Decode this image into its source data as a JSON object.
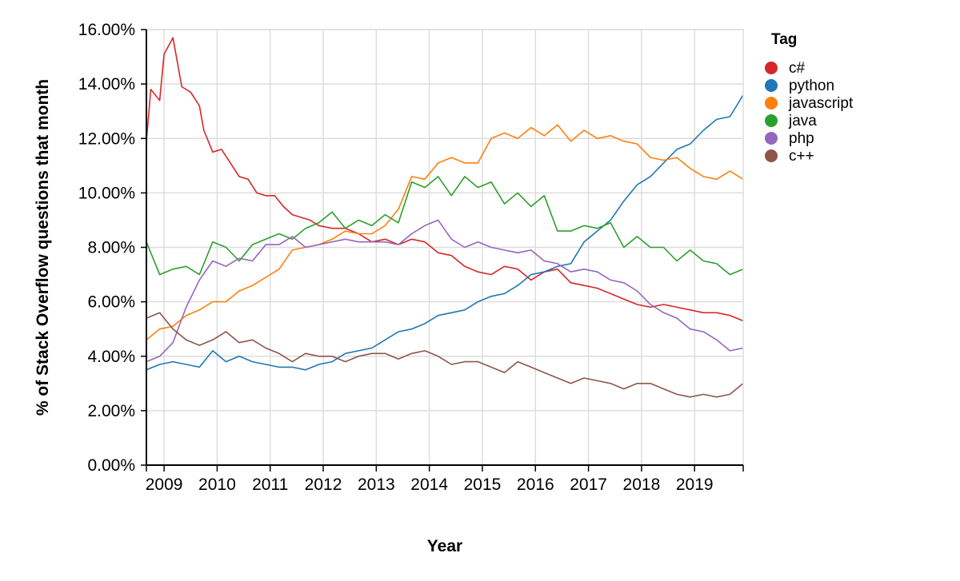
{
  "chart_data": {
    "type": "line",
    "xlabel": "Year",
    "ylabel": "% of Stack Overflow questions that month",
    "ylim": [
      0,
      16
    ],
    "xlim": [
      "2008-09",
      "2019-12"
    ],
    "x_ticks": [
      "2009",
      "2010",
      "2011",
      "2012",
      "2013",
      "2014",
      "2015",
      "2016",
      "2017",
      "2018",
      "2019"
    ],
    "y_ticks": [
      "0.00%",
      "2.00%",
      "4.00%",
      "6.00%",
      "8.00%",
      "10.00%",
      "12.00%",
      "14.00%",
      "16.00%"
    ],
    "y_tick_values": [
      0,
      2,
      4,
      6,
      8,
      10,
      12,
      14,
      16
    ],
    "grid": true,
    "legend": {
      "title": "Tag",
      "placement": "top-right"
    },
    "series": [
      {
        "name": "c#",
        "color": "#d62728",
        "points": [
          [
            "2008-09",
            11.9
          ],
          [
            "2008-10",
            13.8
          ],
          [
            "2008-12",
            13.4
          ],
          [
            "2009-01",
            15.1
          ],
          [
            "2009-03",
            15.7
          ],
          [
            "2009-05",
            13.9
          ],
          [
            "2009-07",
            13.7
          ],
          [
            "2009-09",
            13.2
          ],
          [
            "2009-10",
            12.3
          ],
          [
            "2009-12",
            11.5
          ],
          [
            "2010-02",
            11.6
          ],
          [
            "2010-04",
            11.1
          ],
          [
            "2010-06",
            10.6
          ],
          [
            "2010-08",
            10.5
          ],
          [
            "2010-10",
            10.0
          ],
          [
            "2010-12",
            9.9
          ],
          [
            "2011-02",
            9.9
          ],
          [
            "2011-04",
            9.5
          ],
          [
            "2011-06",
            9.2
          ],
          [
            "2011-08",
            9.1
          ],
          [
            "2011-10",
            9.0
          ],
          [
            "2011-12",
            8.8
          ],
          [
            "2012-03",
            8.7
          ],
          [
            "2012-06",
            8.7
          ],
          [
            "2012-09",
            8.5
          ],
          [
            "2012-12",
            8.2
          ],
          [
            "2013-03",
            8.3
          ],
          [
            "2013-06",
            8.1
          ],
          [
            "2013-09",
            8.3
          ],
          [
            "2013-12",
            8.2
          ],
          [
            "2014-03",
            7.8
          ],
          [
            "2014-06",
            7.7
          ],
          [
            "2014-09",
            7.3
          ],
          [
            "2014-12",
            7.1
          ],
          [
            "2015-03",
            7.0
          ],
          [
            "2015-06",
            7.3
          ],
          [
            "2015-09",
            7.2
          ],
          [
            "2015-12",
            6.8
          ],
          [
            "2016-03",
            7.1
          ],
          [
            "2016-06",
            7.2
          ],
          [
            "2016-09",
            6.7
          ],
          [
            "2016-12",
            6.6
          ],
          [
            "2017-03",
            6.5
          ],
          [
            "2017-06",
            6.3
          ],
          [
            "2017-09",
            6.1
          ],
          [
            "2017-12",
            5.9
          ],
          [
            "2018-03",
            5.8
          ],
          [
            "2018-06",
            5.9
          ],
          [
            "2018-09",
            5.8
          ],
          [
            "2018-12",
            5.7
          ],
          [
            "2019-03",
            5.6
          ],
          [
            "2019-06",
            5.6
          ],
          [
            "2019-09",
            5.5
          ],
          [
            "2019-12",
            5.3
          ]
        ]
      },
      {
        "name": "python",
        "color": "#1f77b4",
        "points": [
          [
            "2008-09",
            3.5
          ],
          [
            "2008-12",
            3.7
          ],
          [
            "2009-03",
            3.8
          ],
          [
            "2009-06",
            3.7
          ],
          [
            "2009-09",
            3.6
          ],
          [
            "2009-12",
            4.2
          ],
          [
            "2010-03",
            3.8
          ],
          [
            "2010-06",
            4.0
          ],
          [
            "2010-09",
            3.8
          ],
          [
            "2010-12",
            3.7
          ],
          [
            "2011-03",
            3.6
          ],
          [
            "2011-06",
            3.6
          ],
          [
            "2011-09",
            3.5
          ],
          [
            "2011-12",
            3.7
          ],
          [
            "2012-03",
            3.8
          ],
          [
            "2012-06",
            4.1
          ],
          [
            "2012-09",
            4.2
          ],
          [
            "2012-12",
            4.3
          ],
          [
            "2013-03",
            4.6
          ],
          [
            "2013-06",
            4.9
          ],
          [
            "2013-09",
            5.0
          ],
          [
            "2013-12",
            5.2
          ],
          [
            "2014-03",
            5.5
          ],
          [
            "2014-06",
            5.6
          ],
          [
            "2014-09",
            5.7
          ],
          [
            "2014-12",
            6.0
          ],
          [
            "2015-03",
            6.2
          ],
          [
            "2015-06",
            6.3
          ],
          [
            "2015-09",
            6.6
          ],
          [
            "2015-12",
            7.0
          ],
          [
            "2016-03",
            7.1
          ],
          [
            "2016-06",
            7.3
          ],
          [
            "2016-09",
            7.4
          ],
          [
            "2016-12",
            8.2
          ],
          [
            "2017-03",
            8.6
          ],
          [
            "2017-06",
            9.0
          ],
          [
            "2017-09",
            9.7
          ],
          [
            "2017-12",
            10.3
          ],
          [
            "2018-03",
            10.6
          ],
          [
            "2018-06",
            11.1
          ],
          [
            "2018-09",
            11.6
          ],
          [
            "2018-12",
            11.8
          ],
          [
            "2019-03",
            12.3
          ],
          [
            "2019-06",
            12.7
          ],
          [
            "2019-09",
            12.8
          ],
          [
            "2019-12",
            13.6
          ]
        ]
      },
      {
        "name": "javascript",
        "color": "#ff7f0e",
        "points": [
          [
            "2008-09",
            4.6
          ],
          [
            "2008-12",
            5.0
          ],
          [
            "2009-03",
            5.1
          ],
          [
            "2009-06",
            5.5
          ],
          [
            "2009-09",
            5.7
          ],
          [
            "2009-12",
            6.0
          ],
          [
            "2010-03",
            6.0
          ],
          [
            "2010-06",
            6.4
          ],
          [
            "2010-09",
            6.6
          ],
          [
            "2010-12",
            6.9
          ],
          [
            "2011-03",
            7.2
          ],
          [
            "2011-06",
            7.9
          ],
          [
            "2011-09",
            8.0
          ],
          [
            "2011-12",
            8.1
          ],
          [
            "2012-03",
            8.3
          ],
          [
            "2012-06",
            8.6
          ],
          [
            "2012-09",
            8.5
          ],
          [
            "2012-12",
            8.5
          ],
          [
            "2013-03",
            8.8
          ],
          [
            "2013-06",
            9.4
          ],
          [
            "2013-09",
            10.6
          ],
          [
            "2013-12",
            10.5
          ],
          [
            "2014-03",
            11.1
          ],
          [
            "2014-06",
            11.3
          ],
          [
            "2014-09",
            11.1
          ],
          [
            "2014-12",
            11.1
          ],
          [
            "2015-03",
            12.0
          ],
          [
            "2015-06",
            12.2
          ],
          [
            "2015-09",
            12.0
          ],
          [
            "2015-12",
            12.4
          ],
          [
            "2016-03",
            12.1
          ],
          [
            "2016-06",
            12.5
          ],
          [
            "2016-09",
            11.9
          ],
          [
            "2016-12",
            12.3
          ],
          [
            "2017-03",
            12.0
          ],
          [
            "2017-06",
            12.1
          ],
          [
            "2017-09",
            11.9
          ],
          [
            "2017-12",
            11.8
          ],
          [
            "2018-03",
            11.3
          ],
          [
            "2018-06",
            11.2
          ],
          [
            "2018-09",
            11.3
          ],
          [
            "2018-12",
            10.9
          ],
          [
            "2019-03",
            10.6
          ],
          [
            "2019-06",
            10.5
          ],
          [
            "2019-09",
            10.8
          ],
          [
            "2019-12",
            10.5
          ]
        ]
      },
      {
        "name": "java",
        "color": "#2ca02c",
        "points": [
          [
            "2008-09",
            8.2
          ],
          [
            "2008-12",
            7.0
          ],
          [
            "2009-03",
            7.2
          ],
          [
            "2009-06",
            7.3
          ],
          [
            "2009-09",
            7.0
          ],
          [
            "2009-12",
            8.2
          ],
          [
            "2010-03",
            8.0
          ],
          [
            "2010-06",
            7.5
          ],
          [
            "2010-09",
            8.1
          ],
          [
            "2010-12",
            8.3
          ],
          [
            "2011-03",
            8.5
          ],
          [
            "2011-06",
            8.3
          ],
          [
            "2011-09",
            8.7
          ],
          [
            "2011-12",
            8.9
          ],
          [
            "2012-03",
            9.3
          ],
          [
            "2012-06",
            8.7
          ],
          [
            "2012-09",
            9.0
          ],
          [
            "2012-12",
            8.8
          ],
          [
            "2013-03",
            9.2
          ],
          [
            "2013-06",
            8.9
          ],
          [
            "2013-09",
            10.4
          ],
          [
            "2013-12",
            10.2
          ],
          [
            "2014-03",
            10.6
          ],
          [
            "2014-06",
            9.9
          ],
          [
            "2014-09",
            10.6
          ],
          [
            "2014-12",
            10.2
          ],
          [
            "2015-03",
            10.4
          ],
          [
            "2015-06",
            9.6
          ],
          [
            "2015-09",
            10.0
          ],
          [
            "2015-12",
            9.5
          ],
          [
            "2016-03",
            9.9
          ],
          [
            "2016-06",
            8.6
          ],
          [
            "2016-09",
            8.6
          ],
          [
            "2016-12",
            8.8
          ],
          [
            "2017-03",
            8.7
          ],
          [
            "2017-06",
            8.9
          ],
          [
            "2017-09",
            8.0
          ],
          [
            "2017-12",
            8.4
          ],
          [
            "2018-03",
            8.0
          ],
          [
            "2018-06",
            8.0
          ],
          [
            "2018-09",
            7.5
          ],
          [
            "2018-12",
            7.9
          ],
          [
            "2019-03",
            7.5
          ],
          [
            "2019-06",
            7.4
          ],
          [
            "2019-09",
            7.0
          ],
          [
            "2019-12",
            7.2
          ]
        ]
      },
      {
        "name": "php",
        "color": "#9467bd",
        "points": [
          [
            "2008-09",
            3.8
          ],
          [
            "2008-12",
            4.0
          ],
          [
            "2009-03",
            4.5
          ],
          [
            "2009-06",
            5.8
          ],
          [
            "2009-09",
            6.8
          ],
          [
            "2009-12",
            7.5
          ],
          [
            "2010-03",
            7.3
          ],
          [
            "2010-06",
            7.6
          ],
          [
            "2010-09",
            7.5
          ],
          [
            "2010-12",
            8.1
          ],
          [
            "2011-03",
            8.1
          ],
          [
            "2011-06",
            8.4
          ],
          [
            "2011-09",
            8.0
          ],
          [
            "2011-12",
            8.1
          ],
          [
            "2012-03",
            8.2
          ],
          [
            "2012-06",
            8.3
          ],
          [
            "2012-09",
            8.2
          ],
          [
            "2012-12",
            8.2
          ],
          [
            "2013-03",
            8.2
          ],
          [
            "2013-06",
            8.1
          ],
          [
            "2013-09",
            8.5
          ],
          [
            "2013-12",
            8.8
          ],
          [
            "2014-03",
            9.0
          ],
          [
            "2014-06",
            8.3
          ],
          [
            "2014-09",
            8.0
          ],
          [
            "2014-12",
            8.2
          ],
          [
            "2015-03",
            8.0
          ],
          [
            "2015-06",
            7.9
          ],
          [
            "2015-09",
            7.8
          ],
          [
            "2015-12",
            7.9
          ],
          [
            "2016-03",
            7.5
          ],
          [
            "2016-06",
            7.4
          ],
          [
            "2016-09",
            7.1
          ],
          [
            "2016-12",
            7.2
          ],
          [
            "2017-03",
            7.1
          ],
          [
            "2017-06",
            6.8
          ],
          [
            "2017-09",
            6.7
          ],
          [
            "2017-12",
            6.4
          ],
          [
            "2018-03",
            5.9
          ],
          [
            "2018-06",
            5.6
          ],
          [
            "2018-09",
            5.4
          ],
          [
            "2018-12",
            5.0
          ],
          [
            "2019-03",
            4.9
          ],
          [
            "2019-06",
            4.6
          ],
          [
            "2019-09",
            4.2
          ],
          [
            "2019-12",
            4.3
          ]
        ]
      },
      {
        "name": "c++",
        "color": "#8c564b",
        "points": [
          [
            "2008-09",
            5.4
          ],
          [
            "2008-12",
            5.6
          ],
          [
            "2009-03",
            5.0
          ],
          [
            "2009-06",
            4.6
          ],
          [
            "2009-09",
            4.4
          ],
          [
            "2009-12",
            4.6
          ],
          [
            "2010-03",
            4.9
          ],
          [
            "2010-06",
            4.5
          ],
          [
            "2010-09",
            4.6
          ],
          [
            "2010-12",
            4.3
          ],
          [
            "2011-03",
            4.1
          ],
          [
            "2011-06",
            3.8
          ],
          [
            "2011-09",
            4.1
          ],
          [
            "2011-12",
            4.0
          ],
          [
            "2012-03",
            4.0
          ],
          [
            "2012-06",
            3.8
          ],
          [
            "2012-09",
            4.0
          ],
          [
            "2012-12",
            4.1
          ],
          [
            "2013-03",
            4.1
          ],
          [
            "2013-06",
            3.9
          ],
          [
            "2013-09",
            4.1
          ],
          [
            "2013-12",
            4.2
          ],
          [
            "2014-03",
            4.0
          ],
          [
            "2014-06",
            3.7
          ],
          [
            "2014-09",
            3.8
          ],
          [
            "2014-12",
            3.8
          ],
          [
            "2015-03",
            3.6
          ],
          [
            "2015-06",
            3.4
          ],
          [
            "2015-09",
            3.8
          ],
          [
            "2015-12",
            3.6
          ],
          [
            "2016-03",
            3.4
          ],
          [
            "2016-06",
            3.2
          ],
          [
            "2016-09",
            3.0
          ],
          [
            "2016-12",
            3.2
          ],
          [
            "2017-03",
            3.1
          ],
          [
            "2017-06",
            3.0
          ],
          [
            "2017-09",
            2.8
          ],
          [
            "2017-12",
            3.0
          ],
          [
            "2018-03",
            3.0
          ],
          [
            "2018-06",
            2.8
          ],
          [
            "2018-09",
            2.6
          ],
          [
            "2018-12",
            2.5
          ],
          [
            "2019-03",
            2.6
          ],
          [
            "2019-06",
            2.5
          ],
          [
            "2019-09",
            2.6
          ],
          [
            "2019-12",
            3.0
          ]
        ]
      }
    ]
  }
}
